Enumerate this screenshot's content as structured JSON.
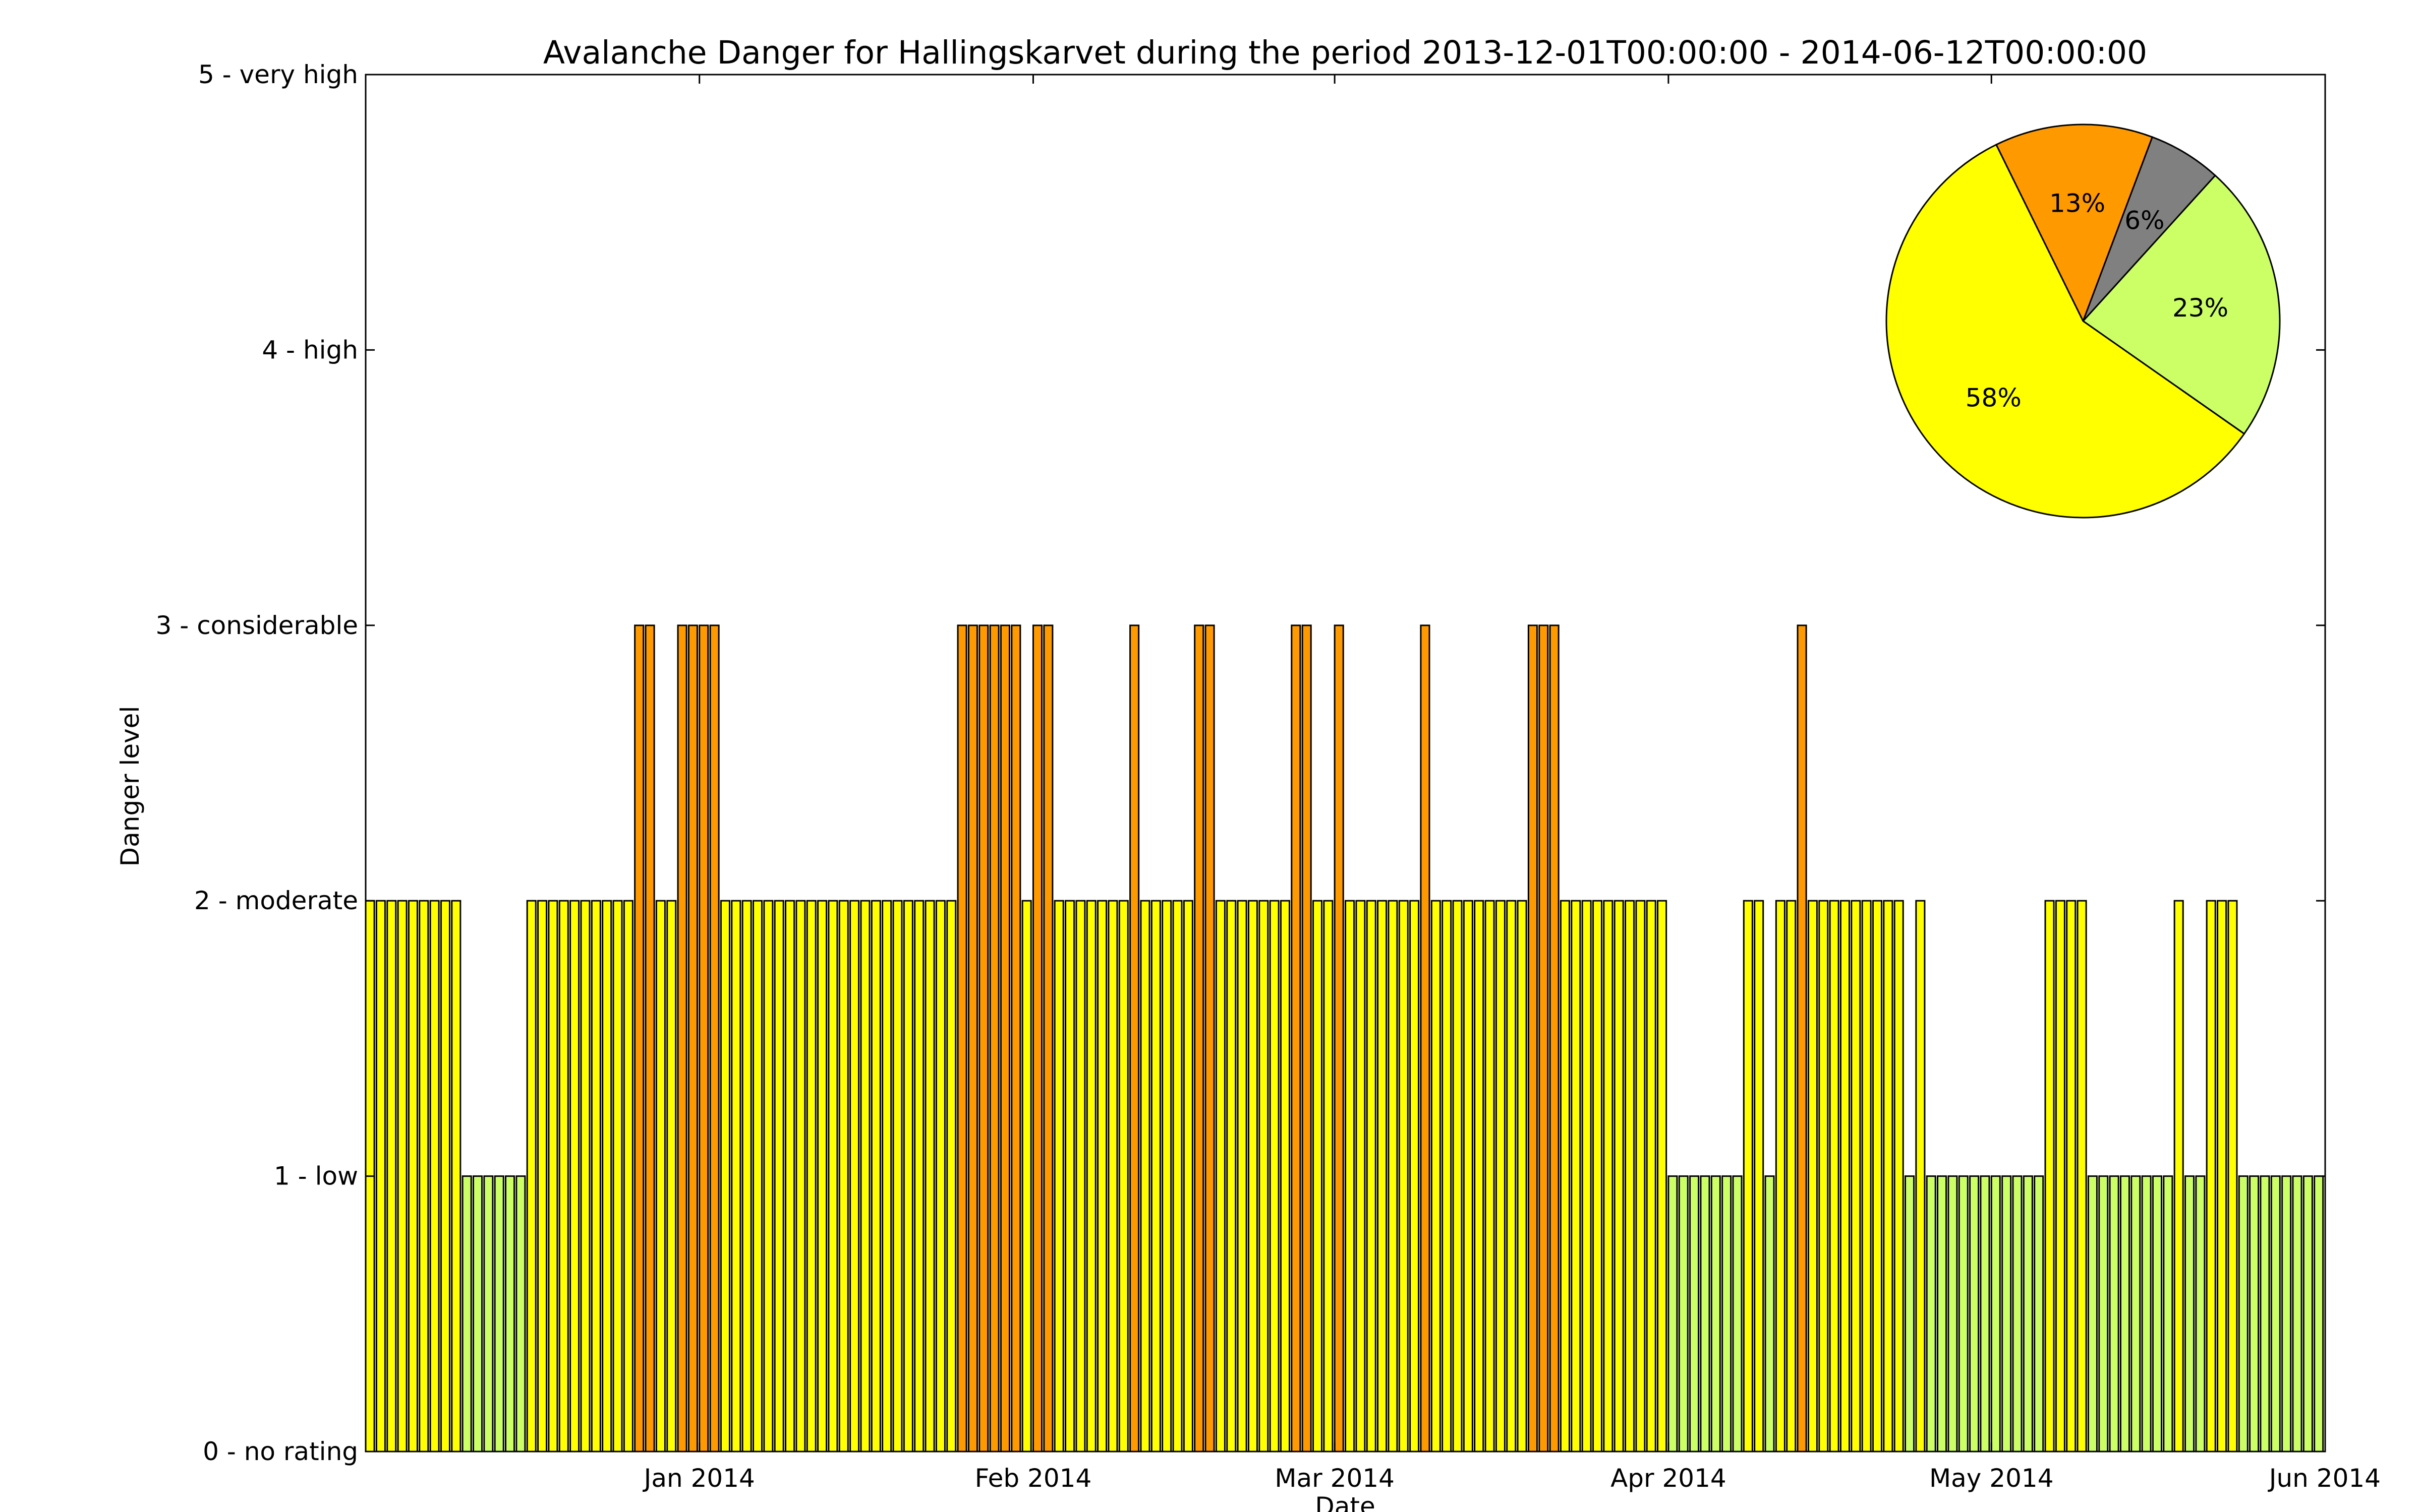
{
  "chart_data": [
    {
      "type": "bar",
      "title": "Avalanche Danger for Hallingskarvet during the period 2013-12-01T00:00:00 - 2014-06-12T00:00:00",
      "xlabel": "Date",
      "ylabel": "Danger level",
      "ylim": [
        0,
        5
      ],
      "xlim": [
        "2013-12-01",
        "2014-06-01"
      ],
      "grid": false,
      "x_ticks": [
        {
          "date": "2014-01-01",
          "label": "Jan 2014"
        },
        {
          "date": "2014-02-01",
          "label": "Feb 2014"
        },
        {
          "date": "2014-03-01",
          "label": "Mar 2014"
        },
        {
          "date": "2014-04-01",
          "label": "Apr 2014"
        },
        {
          "date": "2014-05-01",
          "label": "May 2014"
        },
        {
          "date": "2014-06-01",
          "label": "Jun 2014"
        }
      ],
      "y_ticks": [
        {
          "value": 0,
          "label": "0 - no rating"
        },
        {
          "value": 1,
          "label": "1 - low"
        },
        {
          "value": 2,
          "label": "2 - moderate"
        },
        {
          "value": 3,
          "label": "3 - considerable"
        },
        {
          "value": 4,
          "label": "4 - high"
        },
        {
          "value": 5,
          "label": "5 - very high"
        }
      ],
      "level_colors": {
        "1": "#ccff66",
        "2": "#ffff00",
        "3": "#ff9900"
      },
      "start_date": "2013-12-01",
      "daily_levels": [
        2,
        2,
        2,
        2,
        2,
        2,
        2,
        2,
        2,
        1,
        1,
        1,
        1,
        1,
        1,
        2,
        2,
        2,
        2,
        2,
        2,
        2,
        2,
        2,
        2,
        3,
        3,
        2,
        2,
        3,
        3,
        3,
        3,
        2,
        2,
        2,
        2,
        2,
        2,
        2,
        2,
        2,
        2,
        2,
        2,
        2,
        2,
        2,
        2,
        2,
        2,
        2,
        2,
        2,
        2,
        3,
        3,
        3,
        3,
        3,
        3,
        2,
        3,
        3,
        2,
        2,
        2,
        2,
        2,
        2,
        2,
        3,
        2,
        2,
        2,
        2,
        2,
        3,
        3,
        2,
        2,
        2,
        2,
        2,
        2,
        2,
        3,
        3,
        2,
        2,
        3,
        2,
        2,
        2,
        2,
        2,
        2,
        2,
        3,
        2,
        2,
        2,
        2,
        2,
        2,
        2,
        2,
        2,
        3,
        3,
        3,
        2,
        2,
        2,
        2,
        2,
        2,
        2,
        2,
        2,
        2,
        1,
        1,
        1,
        1,
        1,
        1,
        1,
        2,
        2,
        1,
        2,
        2,
        3,
        2,
        2,
        2,
        2,
        2,
        2,
        2,
        2,
        2,
        1,
        2,
        1,
        1,
        1,
        1,
        1,
        1,
        1,
        1,
        1,
        1,
        1,
        2,
        2,
        2,
        2,
        1,
        1,
        1,
        1,
        1,
        1,
        1,
        1,
        2,
        1,
        1,
        2,
        2,
        2,
        1,
        1,
        1,
        1,
        1,
        1,
        1,
        1
      ]
    },
    {
      "type": "pie",
      "slices": [
        {
          "label": "23%",
          "value": 23,
          "color": "#ccff66"
        },
        {
          "label": "6%",
          "value": 6,
          "color": "#808080"
        },
        {
          "label": "13%",
          "value": 13,
          "color": "#ff9900"
        },
        {
          "label": "58%",
          "value": 58,
          "color": "#ffff00"
        }
      ]
    }
  ]
}
